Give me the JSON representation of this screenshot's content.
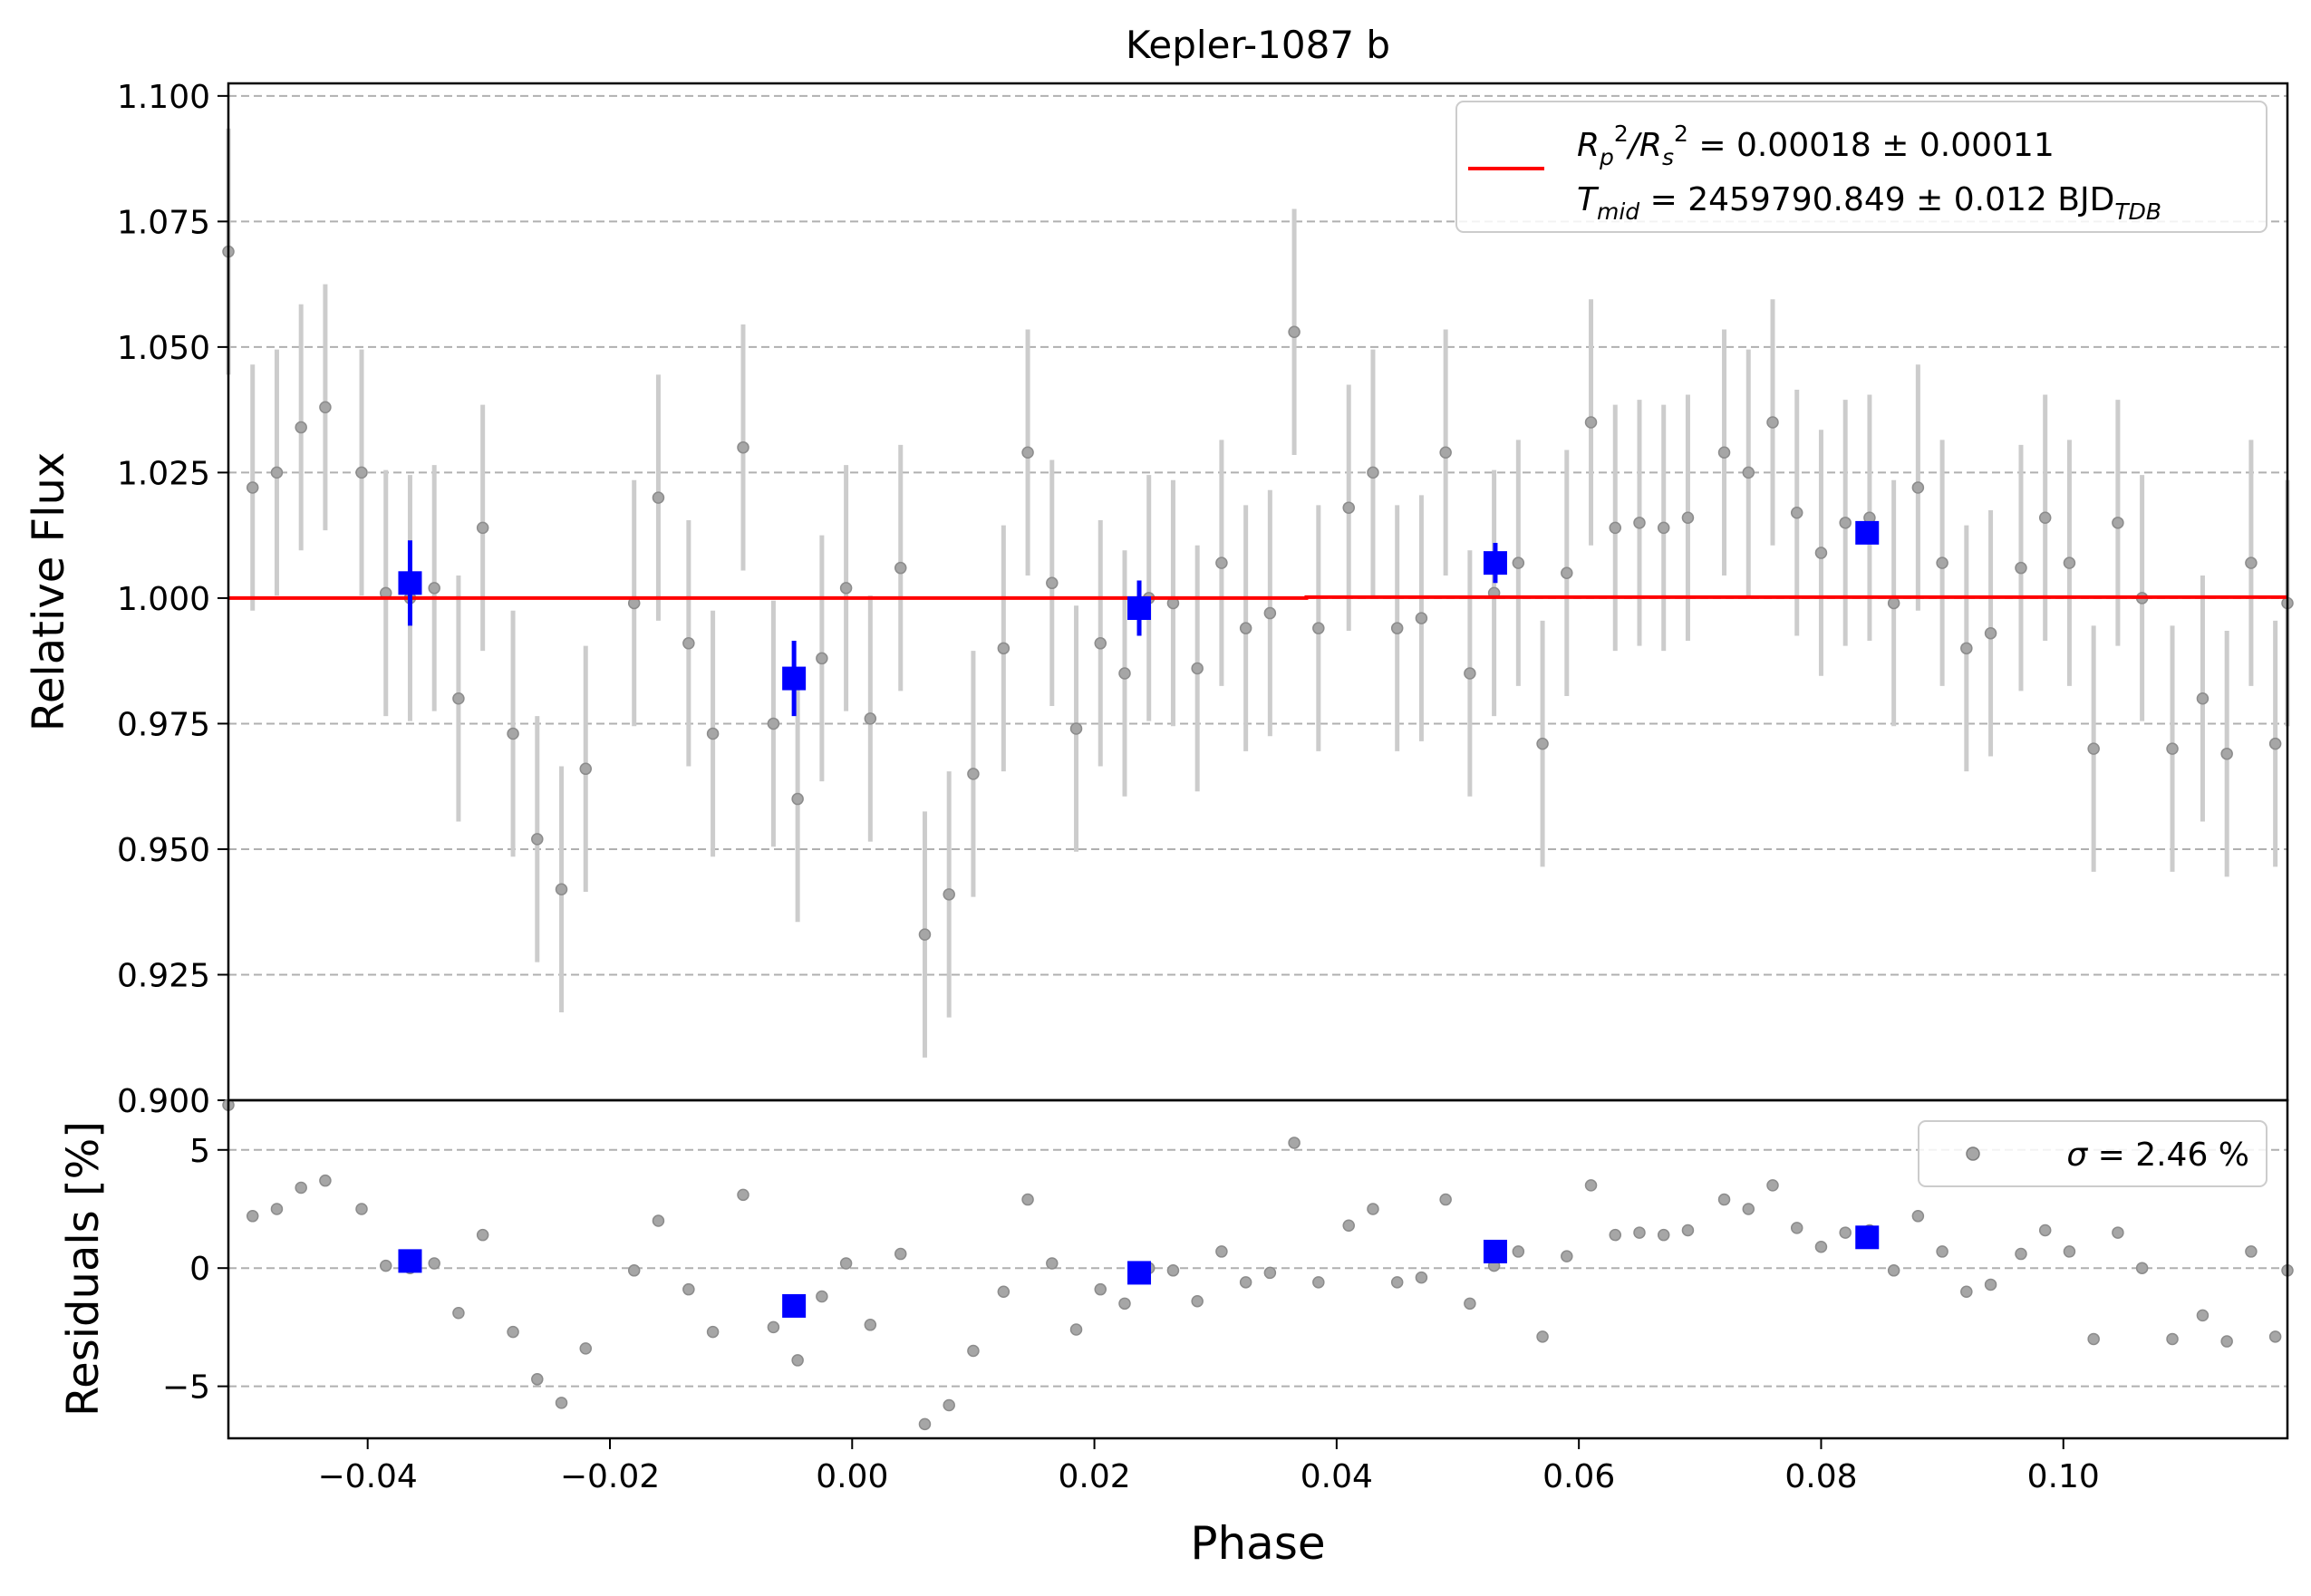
{
  "title": "Kepler-1087 b",
  "colors": {
    "raw": "#a6a6a6",
    "raw_err": "#cccccc",
    "binned": "#0000ff",
    "model": "#ff0000",
    "grid": "#b0b0b0"
  },
  "legend_top": {
    "line1_prefix": "R",
    "line1_sub1": "p",
    "line1_sup1": "2",
    "line1_slash": "/R",
    "line1_sub2": "s",
    "line1_sup2": "2",
    "line1_value": " = 0.00018 ± 0.00011",
    "line2_prefix": "T",
    "line2_sub": "mid",
    "line2_value": " = 2459790.849 ± 0.012 BJD",
    "line2_unit_sub": "TDB"
  },
  "legend_bottom": {
    "sigma_symbol": "σ",
    "sigma_value": " = 2.46 %"
  },
  "chart_data": [
    {
      "type": "scatter",
      "title": "Kepler-1087 b",
      "xlabel": "Phase",
      "ylabel": "Relative Flux",
      "xlim": [
        -0.0515,
        0.1185
      ],
      "ylim": [
        0.9,
        1.1025
      ],
      "yticks": [
        "0.900",
        "0.925",
        "0.950",
        "0.975",
        "1.000",
        "1.025",
        "1.050",
        "1.075",
        "1.100"
      ],
      "grid": "horizontal dashed",
      "legend_position": "top-right",
      "series": [
        {
          "kind": "raw",
          "err": 0.0245,
          "x": [
            -0.0515,
            -0.0495,
            -0.0475,
            -0.0455,
            -0.0435,
            -0.0405,
            -0.0385,
            -0.0365,
            -0.0345,
            -0.0325,
            -0.0305,
            -0.028,
            -0.026,
            -0.024,
            -0.022,
            -0.018,
            -0.016,
            -0.0135,
            -0.0115,
            -0.009,
            -0.0065,
            -0.0045,
            -0.0025,
            -0.0005,
            0.0015,
            0.004,
            0.006,
            0.008,
            0.01,
            0.0125,
            0.0145,
            0.0165,
            0.0185,
            0.0205,
            0.0225,
            0.0245,
            0.0265,
            0.0285,
            0.0305,
            0.0325,
            0.0345,
            0.0365,
            0.0385,
            0.041,
            0.043,
            0.045,
            0.047,
            0.049,
            0.051,
            0.053,
            0.055,
            0.057,
            0.059,
            0.061,
            0.063,
            0.065,
            0.067,
            0.069,
            0.072,
            0.074,
            0.076,
            0.078,
            0.08,
            0.082,
            0.084,
            0.086,
            0.088,
            0.09,
            0.092,
            0.094,
            0.0965,
            0.0985,
            0.1005,
            0.1025,
            0.1045,
            0.1065,
            0.109,
            0.1115,
            0.1135,
            0.1155,
            0.1175,
            0.1185
          ],
          "y": [
            1.069,
            1.022,
            1.025,
            1.034,
            1.038,
            1.025,
            1.001,
            1.0,
            1.002,
            0.98,
            1.014,
            0.973,
            0.952,
            0.942,
            0.966,
            0.999,
            1.02,
            0.991,
            0.973,
            1.03,
            0.975,
            0.96,
            0.988,
            1.002,
            0.976,
            1.006,
            0.933,
            0.941,
            0.965,
            0.99,
            1.029,
            1.003,
            0.974,
            0.991,
            0.985,
            1.0,
            0.999,
            0.986,
            1.007,
            0.994,
            0.997,
            1.053,
            0.994,
            1.018,
            1.025,
            0.994,
            0.996,
            1.029,
            0.985,
            1.001,
            1.007,
            0.971,
            1.005,
            1.035,
            1.014,
            1.015,
            1.014,
            1.016,
            1.029,
            1.025,
            1.035,
            1.017,
            1.009,
            1.015,
            1.016,
            0.999,
            1.022,
            1.007,
            0.99,
            0.993,
            1.006,
            1.016,
            1.007,
            0.97,
            1.015,
            1.0,
            0.97,
            0.98,
            0.969,
            1.007,
            0.971,
            0.999
          ]
        },
        {
          "kind": "binned",
          "x": [
            -0.0365,
            -0.0048,
            0.0237,
            0.0531,
            0.0838
          ],
          "y": [
            1.003,
            0.984,
            0.998,
            1.007,
            1.013
          ],
          "err": [
            0.0085,
            0.0075,
            0.0055,
            0.004,
            0.002
          ]
        },
        {
          "kind": "model",
          "x": [
            -0.0515,
            0.0375,
            0.0375,
            0.1185
          ],
          "y": [
            1.0,
            1.0,
            1.0002,
            1.0002
          ]
        }
      ]
    },
    {
      "type": "scatter",
      "xlabel": "Phase",
      "ylabel": "Residuals [%]",
      "xlim": [
        -0.0515,
        0.1185
      ],
      "ylim": [
        -7.2,
        7.1
      ],
      "xticks": [
        "−0.04",
        "−0.02",
        "0.00",
        "0.02",
        "0.04",
        "0.06",
        "0.08",
        "0.10"
      ],
      "xtick_values": [
        -0.04,
        -0.02,
        0.0,
        0.02,
        0.04,
        0.06,
        0.08,
        0.1
      ],
      "yticks": [
        "−5",
        "0",
        "5"
      ],
      "ytick_values": [
        -5,
        0,
        5
      ],
      "grid": "horizontal dashed",
      "legend_position": "top-right",
      "series": [
        {
          "kind": "raw",
          "x": [
            -0.0515,
            -0.0495,
            -0.0475,
            -0.0455,
            -0.0435,
            -0.0405,
            -0.0385,
            -0.0365,
            -0.0345,
            -0.0325,
            -0.0305,
            -0.028,
            -0.026,
            -0.024,
            -0.022,
            -0.018,
            -0.016,
            -0.0135,
            -0.0115,
            -0.009,
            -0.0065,
            -0.0045,
            -0.0025,
            -0.0005,
            0.0015,
            0.004,
            0.006,
            0.008,
            0.01,
            0.0125,
            0.0145,
            0.0165,
            0.0185,
            0.0205,
            0.0225,
            0.0245,
            0.0265,
            0.0285,
            0.0305,
            0.0325,
            0.0345,
            0.0365,
            0.0385,
            0.041,
            0.043,
            0.045,
            0.047,
            0.049,
            0.051,
            0.053,
            0.055,
            0.057,
            0.059,
            0.061,
            0.063,
            0.065,
            0.067,
            0.069,
            0.072,
            0.074,
            0.076,
            0.078,
            0.08,
            0.082,
            0.084,
            0.086,
            0.088,
            0.09,
            0.092,
            0.094,
            0.0965,
            0.0985,
            0.1005,
            0.1025,
            0.1045,
            0.1065,
            0.109,
            0.1115,
            0.1135,
            0.1155,
            0.1175,
            0.1185
          ],
          "y": [
            6.9,
            2.2,
            2.5,
            3.4,
            3.7,
            2.5,
            0.1,
            0.0,
            0.2,
            -1.9,
            1.4,
            -2.7,
            -4.7,
            -5.7,
            -3.4,
            -0.1,
            2.0,
            -0.9,
            -2.7,
            3.1,
            -2.5,
            -3.9,
            -1.2,
            0.2,
            -2.4,
            0.6,
            -6.6,
            -5.8,
            -3.5,
            -1.0,
            2.9,
            0.2,
            -2.6,
            -0.9,
            -1.5,
            0.0,
            -0.1,
            -1.4,
            0.7,
            -0.6,
            -0.2,
            5.3,
            -0.6,
            1.8,
            2.5,
            -0.6,
            -0.4,
            2.9,
            -1.5,
            0.1,
            0.7,
            -2.9,
            0.5,
            3.5,
            1.4,
            1.5,
            1.4,
            1.6,
            2.9,
            2.5,
            3.5,
            1.7,
            0.9,
            1.5,
            1.6,
            -0.1,
            2.2,
            0.7,
            -1.0,
            -0.7,
            0.6,
            1.6,
            0.7,
            -3.0,
            1.5,
            0.0,
            -3.0,
            -2.0,
            -3.1,
            0.7,
            -2.9,
            -0.1
          ]
        },
        {
          "kind": "binned",
          "x": [
            -0.0365,
            -0.0048,
            0.0237,
            0.0531,
            0.0838
          ],
          "y": [
            0.3,
            -1.6,
            -0.2,
            0.7,
            1.3
          ]
        }
      ]
    }
  ]
}
